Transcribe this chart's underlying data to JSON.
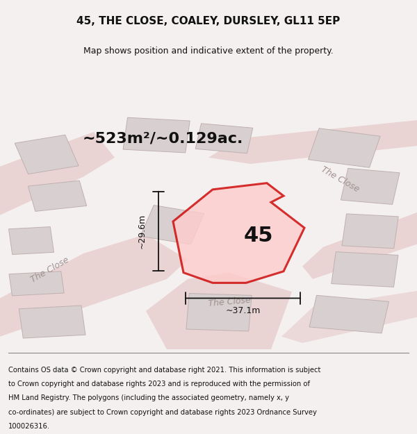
{
  "title_line1": "45, THE CLOSE, COALEY, DURSLEY, GL11 5EP",
  "title_line2": "Map shows position and indicative extent of the property.",
  "area_label": "~523m²/~0.129ac.",
  "plot_label": "45",
  "dim_width": "~37.1m",
  "dim_height": "~29.6m",
  "footer_lines": [
    "Contains OS data © Crown copyright and database right 2021. This information is subject",
    "to Crown copyright and database rights 2023 and is reproduced with the permission of",
    "HM Land Registry. The polygons (including the associated geometry, namely x, y",
    "co-ordinates) are subject to Crown copyright and database rights 2023 Ordnance Survey",
    "100026316."
  ],
  "bg_color": "#f5f0f0",
  "map_bg": "#f9f5f5",
  "road_color": "#e8d0d0",
  "building_fill": "#d8d0d0",
  "building_edge": "#c0b0b0",
  "plot_fill": "#ffcccc",
  "plot_edge": "#cc0000",
  "road_label_color": "#a09090",
  "dim_color": "#111111",
  "title_fontsize": 11,
  "subtitle_fontsize": 9,
  "area_fontsize": 16,
  "plot_num_fontsize": 22,
  "footer_fontsize": 7.2,
  "road_label_fontsize": 9
}
